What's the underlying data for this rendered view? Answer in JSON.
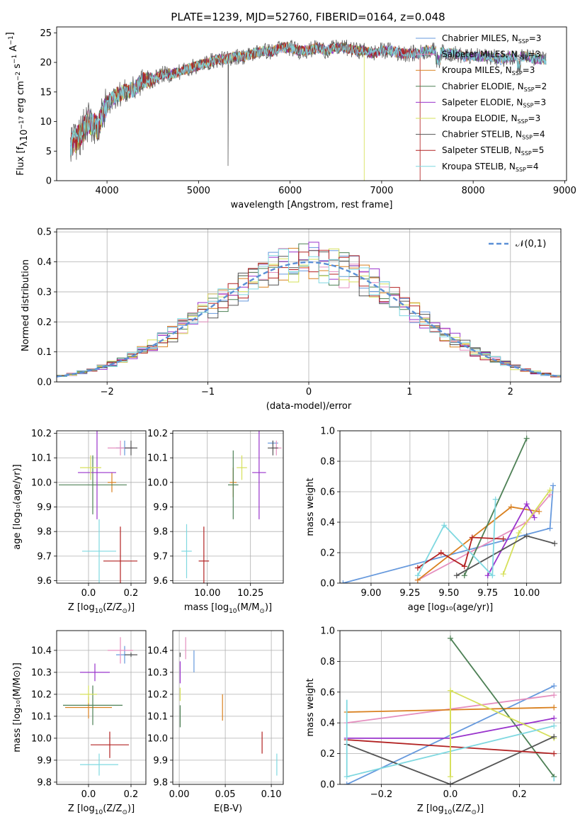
{
  "figure_title": "PLATE=1239, MJD=52760, FIBERID=0164, z=0.048",
  "series_colors": {
    "Chabrier MILES": "#6699dd",
    "Salpeter MILES": "#e58fbf",
    "Kroupa MILES": "#d9801f",
    "Chabrier ELODIE": "#4d8055",
    "Salpeter ELODIE": "#9933cc",
    "Kroupa ELODIE": "#d6e05a",
    "Chabrier STELIB": "#555555",
    "Salpeter STELIB": "#b22222",
    "Kroupa STELIB": "#7fd8e0"
  },
  "chart_data": [
    {
      "id": "spectrum",
      "type": "line",
      "title": "PLATE=1239, MJD=52760, FIBERID=0164, z=0.048",
      "xlabel": "wavelength [Angstrom, rest frame]",
      "ylabel": "Flux [f_λ 10^-17 erg cm^-2 s^-1 A^-1]",
      "xlim": [
        3450,
        9020
      ],
      "ylim": [
        0,
        26
      ],
      "xticks": [
        4000,
        5000,
        6000,
        7000,
        8000,
        9000
      ],
      "yticks": [
        0,
        5,
        10,
        15,
        20,
        25
      ],
      "legend": {
        "placement": "top-right",
        "entries": [
          "Chabrier MILES, N_SSP=3",
          "Salpeter MILES, N_SSP=3",
          "Kroupa MILES, N_SSP=3",
          "Chabrier ELODIE, N_SSP=2",
          "Salpeter ELODIE, N_SSP=3",
          "Kroupa ELODIE, N_SSP=3",
          "Chabrier STELIB, N_SSP=4",
          "Salpeter STELIB, N_SSP=5",
          "Kroupa STELIB, N_SSP=4"
        ]
      },
      "envelope": {
        "x": [
          3600,
          3700,
          3800,
          3900,
          4000,
          4100,
          4200,
          4300,
          4400,
          4500,
          4600,
          4700,
          4800,
          4900,
          5000,
          5100,
          5200,
          5300,
          5400,
          5500,
          5600,
          5700,
          5800,
          5900,
          6000,
          6100,
          6200,
          6300,
          6400,
          6500,
          6600,
          6700,
          6800,
          6900,
          7000,
          7100,
          7200,
          7300,
          7400,
          7500,
          7600,
          7700,
          7800,
          7900,
          8000,
          8100,
          8200,
          8300,
          8400,
          8500,
          8600,
          8700,
          8800
        ],
        "y": [
          6,
          7.5,
          10,
          9,
          13,
          14.5,
          15,
          15.5,
          17,
          17,
          18,
          18,
          18.5,
          19,
          19.5,
          20,
          20.5,
          20.5,
          21,
          21,
          21.5,
          22,
          21.8,
          22.5,
          22.5,
          22,
          22,
          22.5,
          22,
          22.5,
          22.5,
          22,
          22,
          21.5,
          22,
          22,
          21.5,
          21.5,
          21.5,
          22,
          22,
          21.5,
          21.5,
          21,
          21,
          21,
          21,
          20.5,
          21,
          21,
          21,
          20.5,
          20.5
        ]
      },
      "sharp_drops": [
        {
          "series": "Kroupa ELODIE",
          "x": 6810,
          "to_y": 0
        },
        {
          "series": "Salpeter STELIB",
          "x": 7420,
          "to_y": 0
        },
        {
          "series": "Chabrier STELIB",
          "x": 5320,
          "to_y": 2.5
        }
      ]
    },
    {
      "id": "residuals",
      "type": "histogram",
      "xlabel": "(data-model)/error",
      "ylabel": "Normed distribution",
      "xlim": [
        -2.5,
        2.5
      ],
      "ylim": [
        0,
        0.51
      ],
      "xticks": [
        -2,
        -1,
        0,
        1,
        2
      ],
      "yticks": [
        0.0,
        0.1,
        0.2,
        0.3,
        0.4,
        0.5
      ],
      "grid": true,
      "reference_curve": {
        "label": "𝒩(0,1)",
        "mean": 0,
        "sigma": 1,
        "color": "#5b8fd6",
        "style": "dashed"
      },
      "legend": {
        "placement": "top-right",
        "entries": [
          "𝒩(0,1)"
        ]
      }
    },
    {
      "id": "age_vs_Z",
      "type": "scatter",
      "xlabel": "Z [log10(Z/Z⊙)]",
      "ylabel": "age [log10(age/yr)]",
      "xlim": [
        -0.15,
        0.27
      ],
      "ylim": [
        9.59,
        10.21
      ],
      "xticks": [
        0.0,
        0.2
      ],
      "yticks": [
        9.6,
        9.7,
        9.8,
        9.9,
        10.0,
        10.1,
        10.2
      ],
      "grid": true,
      "points": [
        {
          "series": "Chabrier MILES",
          "x": 0.17,
          "y": 10.14,
          "xerr": 0.04,
          "yerr": 0.03
        },
        {
          "series": "Salpeter MILES",
          "x": 0.15,
          "y": 10.14,
          "xerr": 0.06,
          "yerr": 0.03
        },
        {
          "series": "Kroupa MILES",
          "x": 0.11,
          "y": 10.0,
          "xerr": 0.02,
          "yerr": 0.04
        },
        {
          "series": "Chabrier ELODIE",
          "x": 0.02,
          "y": 9.99,
          "xerr": 0.16,
          "yerr": 0.12
        },
        {
          "series": "Salpeter ELODIE",
          "x": 0.04,
          "y": 10.04,
          "xerr": 0.09,
          "yerr": 0.19
        },
        {
          "series": "Kroupa ELODIE",
          "x": 0.01,
          "y": 10.06,
          "xerr": 0.05,
          "yerr": 0.05
        },
        {
          "series": "Chabrier STELIB",
          "x": 0.2,
          "y": 10.14,
          "xerr": 0.03,
          "yerr": 0.03
        },
        {
          "series": "Salpeter STELIB",
          "x": 0.15,
          "y": 9.68,
          "xerr": 0.08,
          "yerr": 0.14
        },
        {
          "series": "Kroupa STELIB",
          "x": 0.05,
          "y": 9.72,
          "xerr": 0.08,
          "yerr": 0.13
        }
      ]
    },
    {
      "id": "age_vs_mass",
      "type": "scatter",
      "xlabel": "mass [log10(M/M⊙)]",
      "ylabel": "",
      "xlim": [
        9.8,
        10.44
      ],
      "ylim": [
        9.59,
        10.21
      ],
      "xticks": [
        10.0,
        10.25
      ],
      "yticks": [
        9.6,
        9.7,
        9.8,
        9.9,
        10.0,
        10.1,
        10.2
      ],
      "grid": true,
      "points": [
        {
          "series": "Chabrier MILES",
          "x": 10.38,
          "y": 10.16,
          "xerr": 0.03,
          "yerr": 0.01
        },
        {
          "series": "Salpeter MILES",
          "x": 10.4,
          "y": 10.14,
          "xerr": 0.03,
          "yerr": 0.03
        },
        {
          "series": "Kroupa MILES",
          "x": 10.15,
          "y": 10.0,
          "xerr": 0.02,
          "yerr": 0.06
        },
        {
          "series": "Chabrier ELODIE",
          "x": 10.15,
          "y": 9.99,
          "xerr": 0.03,
          "yerr": 0.14
        },
        {
          "series": "Salpeter ELODIE",
          "x": 10.3,
          "y": 10.04,
          "xerr": 0.04,
          "yerr": 0.19
        },
        {
          "series": "Kroupa ELODIE",
          "x": 10.2,
          "y": 10.06,
          "xerr": 0.03,
          "yerr": 0.05
        },
        {
          "series": "Chabrier STELIB",
          "x": 10.38,
          "y": 10.14,
          "xerr": 0.03,
          "yerr": 0.03
        },
        {
          "series": "Salpeter STELIB",
          "x": 9.98,
          "y": 9.68,
          "xerr": 0.03,
          "yerr": 0.14
        },
        {
          "series": "Kroupa STELIB",
          "x": 9.88,
          "y": 9.72,
          "xerr": 0.03,
          "yerr": 0.11
        }
      ]
    },
    {
      "id": "weight_vs_age",
      "type": "line",
      "xlabel": "age [log10(age/yr)]",
      "ylabel": "mass weight",
      "xlim": [
        8.8,
        10.22
      ],
      "ylim": [
        0,
        1.0
      ],
      "xticks": [
        9.0,
        9.25,
        9.5,
        9.75,
        10.0
      ],
      "yticks": [
        0.0,
        0.2,
        0.4,
        0.6,
        0.8,
        1.0
      ],
      "grid": true,
      "series": [
        {
          "name": "Chabrier MILES",
          "x": [
            8.82,
            10.15,
            10.17
          ],
          "y": [
            0.0,
            0.36,
            0.64
          ]
        },
        {
          "name": "Salpeter MILES",
          "x": [
            9.3,
            10.0,
            10.15
          ],
          "y": [
            0.02,
            0.4,
            0.58
          ]
        },
        {
          "name": "Kroupa MILES",
          "x": [
            9.3,
            9.9,
            10.08
          ],
          "y": [
            0.02,
            0.5,
            0.47
          ]
        },
        {
          "name": "Chabrier ELODIE",
          "x": [
            9.6,
            10.0
          ],
          "y": [
            0.05,
            0.95
          ]
        },
        {
          "name": "Salpeter ELODIE",
          "x": [
            9.75,
            10.0,
            10.05
          ],
          "y": [
            0.05,
            0.52,
            0.43
          ]
        },
        {
          "name": "Kroupa ELODIE",
          "x": [
            9.85,
            9.95,
            10.15
          ],
          "y": [
            0.06,
            0.33,
            0.61
          ]
        },
        {
          "name": "Chabrier STELIB",
          "x": [
            9.55,
            10.0,
            10.18
          ],
          "y": [
            0.05,
            0.31,
            0.26
          ]
        },
        {
          "name": "Salpeter STELIB",
          "x": [
            9.3,
            9.45,
            9.6,
            9.65,
            9.85
          ],
          "y": [
            0.1,
            0.2,
            0.11,
            0.3,
            0.29
          ]
        },
        {
          "name": "Kroupa STELIB",
          "x": [
            9.3,
            9.47,
            9.78,
            9.8
          ],
          "y": [
            0.05,
            0.38,
            0.05,
            0.55
          ]
        }
      ]
    },
    {
      "id": "mass_vs_Z",
      "type": "scatter",
      "xlabel": "Z [log10(Z/Z⊙)]",
      "ylabel": "mass [log10(M/M⊙)]",
      "xlim": [
        -0.15,
        0.27
      ],
      "ylim": [
        9.79,
        10.49
      ],
      "xticks": [
        0.0,
        0.2
      ],
      "yticks": [
        9.8,
        9.9,
        10.0,
        10.1,
        10.2,
        10.3,
        10.4
      ],
      "grid": true,
      "points": [
        {
          "series": "Chabrier MILES",
          "x": 0.17,
          "y": 10.38,
          "xerr": 0.04,
          "yerr": 0.04
        },
        {
          "series": "Salpeter MILES",
          "x": 0.15,
          "y": 10.4,
          "xerr": 0.06,
          "yerr": 0.06
        },
        {
          "series": "Kroupa MILES",
          "x": 0.0,
          "y": 10.14,
          "xerr": 0.11,
          "yerr": 0.05
        },
        {
          "series": "Chabrier ELODIE",
          "x": 0.02,
          "y": 10.15,
          "xerr": 0.14,
          "yerr": 0.09
        },
        {
          "series": "Salpeter ELODIE",
          "x": 0.03,
          "y": 10.3,
          "xerr": 0.07,
          "yerr": 0.04
        },
        {
          "series": "Kroupa ELODIE",
          "x": 0.0,
          "y": 10.2,
          "xerr": 0.04,
          "yerr": 0.04
        },
        {
          "series": "Chabrier STELIB",
          "x": 0.2,
          "y": 10.38,
          "xerr": 0.03,
          "yerr": 0.01
        },
        {
          "series": "Salpeter STELIB",
          "x": 0.1,
          "y": 9.97,
          "xerr": 0.09,
          "yerr": 0.06
        },
        {
          "series": "Kroupa STELIB",
          "x": 0.05,
          "y": 9.88,
          "xerr": 0.09,
          "yerr": 0.05
        }
      ]
    },
    {
      "id": "mass_vs_ebv",
      "type": "scatter",
      "xlabel": "E(B-V)",
      "ylabel": "",
      "xlim": [
        -0.007,
        0.113
      ],
      "ylim": [
        9.79,
        10.49
      ],
      "xticks": [
        0.0,
        0.05,
        0.1
      ],
      "yticks": [
        9.8,
        9.9,
        10.0,
        10.1,
        10.2,
        10.3,
        10.4
      ],
      "grid": true,
      "points": [
        {
          "series": "Chabrier MILES",
          "x": 0.016,
          "y": 10.35,
          "xerr": 0,
          "yerr": 0.05
        },
        {
          "series": "Salpeter MILES",
          "x": 0.007,
          "y": 10.41,
          "xerr": 0,
          "yerr": 0.05
        },
        {
          "series": "Kroupa MILES",
          "x": 0.047,
          "y": 10.14,
          "xerr": 0,
          "yerr": 0.06
        },
        {
          "series": "Chabrier ELODIE",
          "x": 0.001,
          "y": 10.1,
          "xerr": 0,
          "yerr": 0.05
        },
        {
          "series": "Salpeter ELODIE",
          "x": 0.001,
          "y": 10.3,
          "xerr": 0,
          "yerr": 0.05
        },
        {
          "series": "Kroupa ELODIE",
          "x": 0.001,
          "y": 10.2,
          "xerr": 0,
          "yerr": 0.03
        },
        {
          "series": "Chabrier STELIB",
          "x": 0.001,
          "y": 10.38,
          "xerr": 0,
          "yerr": 0.01
        },
        {
          "series": "Salpeter STELIB",
          "x": 0.09,
          "y": 9.98,
          "xerr": 0,
          "yerr": 0.05
        },
        {
          "series": "Kroupa STELIB",
          "x": 0.106,
          "y": 9.88,
          "xerr": 0,
          "yerr": 0.05
        }
      ]
    },
    {
      "id": "weight_vs_Z",
      "type": "line",
      "xlabel": "Z [log10(Z/Z⊙)]",
      "ylabel": "mass weight",
      "xlim": [
        -0.32,
        0.32
      ],
      "ylim": [
        0,
        1.0
      ],
      "xticks": [
        -0.2,
        0.0,
        0.2
      ],
      "yticks": [
        0.0,
        0.2,
        0.4,
        0.6,
        0.8,
        1.0
      ],
      "grid": true,
      "series": [
        {
          "name": "Chabrier MILES",
          "x": [
            -0.3,
            0.3
          ],
          "y": [
            0.0,
            0.64
          ]
        },
        {
          "name": "Salpeter MILES",
          "x": [
            -0.3,
            0.3
          ],
          "y": [
            0.4,
            0.58
          ]
        },
        {
          "name": "Kroupa MILES",
          "x": [
            -0.3,
            0.3
          ],
          "y": [
            0.47,
            0.5
          ]
        },
        {
          "name": "Chabrier ELODIE",
          "x": [
            0.0,
            0.3
          ],
          "y": [
            0.95,
            0.05
          ]
        },
        {
          "name": "Salpeter ELODIE",
          "x": [
            -0.3,
            0.0,
            0.3
          ],
          "y": [
            0.3,
            0.3,
            0.43
          ]
        },
        {
          "name": "Kroupa ELODIE",
          "x": [
            0.0,
            0.0,
            0.3
          ],
          "y": [
            0.05,
            0.61,
            0.3
          ]
        },
        {
          "name": "Chabrier STELIB",
          "x": [
            -0.3,
            0.0,
            0.3
          ],
          "y": [
            0.26,
            0.0,
            0.31
          ]
        },
        {
          "name": "Salpeter STELIB",
          "x": [
            -0.3,
            0.3
          ],
          "y": [
            0.29,
            0.2
          ]
        },
        {
          "name": "Kroupa STELIB",
          "x": [
            -0.3,
            0.3
          ],
          "y": [
            0.05,
            0.38
          ]
        }
      ],
      "vertical_marks": [
        {
          "series": "Kroupa STELIB",
          "x": -0.3,
          "y": [
            0.05,
            0.55
          ]
        },
        {
          "series": "Kroupa ELODIE",
          "x": 0.0,
          "y": [
            0.05,
            0.61
          ]
        },
        {
          "series": "Kroupa STELIB",
          "x": 0.3,
          "y": [
            0.02,
            0.05
          ]
        }
      ]
    }
  ]
}
